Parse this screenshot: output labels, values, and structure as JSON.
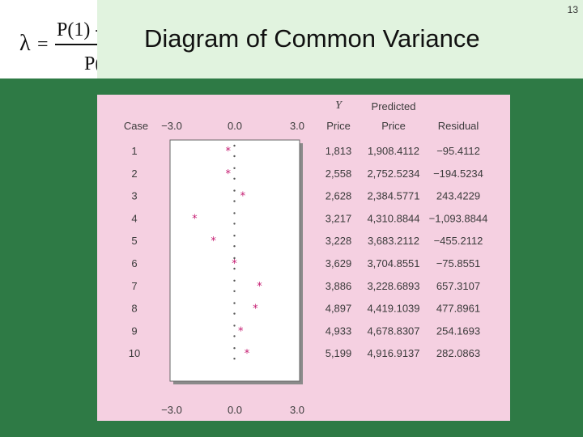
{
  "slide_number": "13",
  "title": "Diagram of Common Variance",
  "formula_fragment": {
    "lambda": "λ",
    "equals": "=",
    "numerator": "P(1) -",
    "denominator": "P("
  },
  "headers": {
    "case": "Case",
    "y_symbol": "Y",
    "price": "Price",
    "predicted_line1": "Predicted",
    "predicted_line2": "Price",
    "residual": "Residual"
  },
  "axis_ticks": [
    "−3.0",
    "0.0",
    "3.0"
  ],
  "chart_data": {
    "type": "scatter",
    "xlim": [
      -3.0,
      3.0
    ],
    "xticks": [
      -3.0,
      0.0,
      3.0
    ],
    "marker": "*",
    "rows": [
      {
        "case": "1",
        "y": "1,813",
        "predicted": "1,908.4112",
        "residual": "−95.4112",
        "std_residual": -0.3
      },
      {
        "case": "2",
        "y": "2,558",
        "predicted": "2,752.5234",
        "residual": "−194.5234",
        "std_residual": -0.3
      },
      {
        "case": "3",
        "y": "2,628",
        "predicted": "2,384.5771",
        "residual": "243.4229",
        "std_residual": 0.4
      },
      {
        "case": "4",
        "y": "3,217",
        "predicted": "4,310.8844",
        "residual": "−1,093.8844",
        "std_residual": -1.9
      },
      {
        "case": "5",
        "y": "3,228",
        "predicted": "3,683.2112",
        "residual": "−455.2112",
        "std_residual": -1.0
      },
      {
        "case": "6",
        "y": "3,629",
        "predicted": "3,704.8551",
        "residual": "−75.8551",
        "std_residual": 0.0
      },
      {
        "case": "7",
        "y": "3,886",
        "predicted": "3,228.6893",
        "residual": "657.3107",
        "std_residual": 1.2
      },
      {
        "case": "8",
        "y": "4,897",
        "predicted": "4,419.1039",
        "residual": "477.8961",
        "std_residual": 1.0
      },
      {
        "case": "9",
        "y": "4,933",
        "predicted": "4,678.8307",
        "residual": "254.1693",
        "std_residual": 0.3
      },
      {
        "case": "10",
        "y": "5,199",
        "predicted": "4,916.9137",
        "residual": "282.0863",
        "std_residual": 0.6
      }
    ]
  },
  "colors": {
    "background": "#2e7a45",
    "header": "#e1f3df",
    "panel": "#f5d0e1",
    "marker": "#c4186f"
  }
}
